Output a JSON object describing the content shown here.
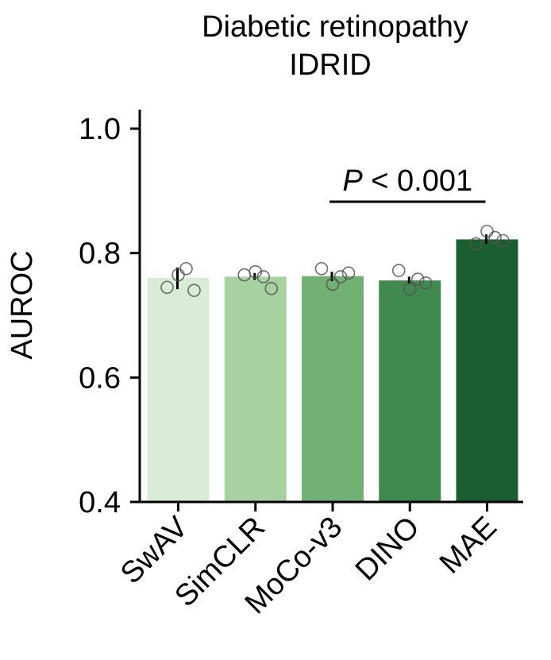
{
  "chart_data": {
    "type": "bar",
    "title": "Diabetic retinopathy",
    "subtitle": "IDRID",
    "ylabel": "AUROC",
    "xlabel": "",
    "ylim": [
      0.4,
      1.0
    ],
    "yticks": [
      "0.4",
      "0.6",
      "0.8",
      "1.0"
    ],
    "categories": [
      "SwAV",
      "SimCLR",
      "MoCo-v3",
      "DINO",
      "MAE"
    ],
    "values": [
      0.76,
      0.762,
      0.763,
      0.756,
      0.822
    ],
    "error_bars": [
      [
        0.742,
        0.777
      ],
      [
        0.757,
        0.768
      ],
      [
        0.755,
        0.77
      ],
      [
        0.75,
        0.762
      ],
      [
        0.815,
        0.83
      ]
    ],
    "points": [
      [
        0.745,
        0.765,
        0.775,
        0.74
      ],
      [
        0.765,
        0.77,
        0.762,
        0.743
      ],
      [
        0.775,
        0.75,
        0.762,
        0.768
      ],
      [
        0.772,
        0.742,
        0.758,
        0.752
      ],
      [
        0.815,
        0.835,
        0.825,
        0.82
      ]
    ],
    "colors": [
      "#d9ecd5",
      "#a8d1a1",
      "#73b076",
      "#40894f",
      "#1b5e2f"
    ],
    "annotation": {
      "label_italic": "P",
      "label_rest": " < 0.001"
    },
    "grid": false,
    "legend": "none"
  }
}
